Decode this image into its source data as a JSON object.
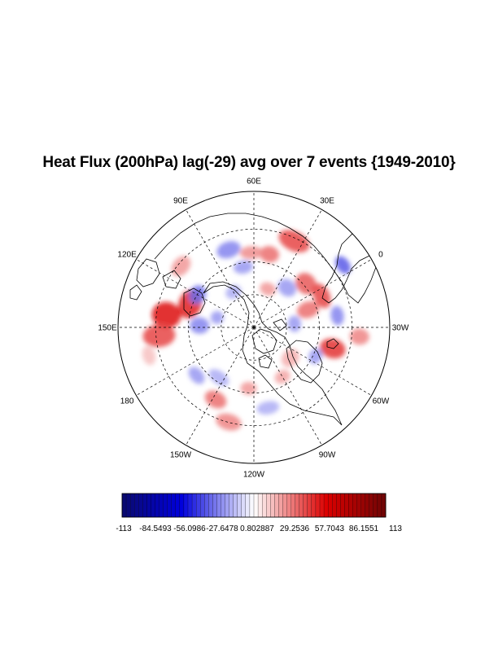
{
  "chart_data": {
    "type": "heatmap",
    "title": "Heat Flux (200hPa) lag(-29) avg over 7 events {1949-2010}",
    "projection": "north-polar-stereographic",
    "longitude_labels": [
      "60E",
      "30E",
      "0",
      "30W",
      "60W",
      "90W",
      "120W",
      "150W",
      "180",
      "150E",
      "120E",
      "90E"
    ],
    "longitude_angles_deg": [
      90,
      60,
      30,
      0,
      -30,
      -60,
      -90,
      -120,
      -150,
      180,
      150,
      120
    ],
    "grid": true,
    "latitude_circles": 3,
    "colorbar": {
      "min": -113,
      "max": 113,
      "tick_labels": [
        "-113",
        "-84.5493",
        "-56.0986",
        "-27.6478",
        "0.802887",
        "29.2536",
        "57.7043",
        "86.1551",
        "113"
      ],
      "colors": {
        "min": "#0a0a6e",
        "mid": "#ffffff",
        "max": "#6e0505"
      },
      "n_levels": 64
    },
    "anomalies": [
      {
        "angle": 65,
        "r": 0.7,
        "value": 45,
        "sx": 20,
        "sy": 12
      },
      {
        "angle": 78,
        "r": 0.55,
        "value": 35,
        "sx": 12,
        "sy": 10
      },
      {
        "angle": 92,
        "r": 0.55,
        "value": 28,
        "sx": 14,
        "sy": 8
      },
      {
        "angle": 108,
        "r": 0.6,
        "value": -30,
        "sx": 15,
        "sy": 10
      },
      {
        "angle": 100,
        "r": 0.45,
        "value": -25,
        "sx": 12,
        "sy": 8
      },
      {
        "angle": 40,
        "r": 0.5,
        "value": 40,
        "sx": 14,
        "sy": 12
      },
      {
        "angle": 25,
        "r": 0.55,
        "value": 45,
        "sx": 16,
        "sy": 10
      },
      {
        "angle": 18,
        "r": 0.42,
        "value": 35,
        "sx": 10,
        "sy": 14
      },
      {
        "angle": 50,
        "r": 0.38,
        "value": -25,
        "sx": 12,
        "sy": 10
      },
      {
        "angle": 35,
        "r": 0.8,
        "value": -40,
        "sx": 12,
        "sy": 8
      },
      {
        "angle": 8,
        "r": 0.62,
        "value": -30,
        "sx": 12,
        "sy": 8
      },
      {
        "angle": 160,
        "r": 0.5,
        "value": 55,
        "sx": 18,
        "sy": 14
      },
      {
        "angle": 172,
        "r": 0.65,
        "value": 60,
        "sx": 16,
        "sy": 18
      },
      {
        "angle": 185,
        "r": 0.7,
        "value": 45,
        "sx": 14,
        "sy": 20
      },
      {
        "angle": 150,
        "r": 0.48,
        "value": -35,
        "sx": 12,
        "sy": 10
      },
      {
        "angle": 178,
        "r": 0.4,
        "value": -30,
        "sx": 10,
        "sy": 12
      },
      {
        "angle": 165,
        "r": 0.28,
        "value": -25,
        "sx": 8,
        "sy": 8
      },
      {
        "angle": 140,
        "r": 0.7,
        "value": 25,
        "sx": 14,
        "sy": 10
      },
      {
        "angle": -125,
        "r": 0.45,
        "value": -20,
        "sx": 14,
        "sy": 8
      },
      {
        "angle": -118,
        "r": 0.6,
        "value": 35,
        "sx": 14,
        "sy": 10
      },
      {
        "angle": -105,
        "r": 0.72,
        "value": 30,
        "sx": 16,
        "sy": 10
      },
      {
        "angle": -140,
        "r": 0.55,
        "value": -25,
        "sx": 12,
        "sy": 8
      },
      {
        "angle": -80,
        "r": 0.6,
        "value": -20,
        "sx": 14,
        "sy": 8
      },
      {
        "angle": -95,
        "r": 0.45,
        "value": 25,
        "sx": 10,
        "sy": 8
      },
      {
        "angle": -15,
        "r": 0.6,
        "value": 50,
        "sx": 12,
        "sy": 16
      },
      {
        "angle": -25,
        "r": 0.5,
        "value": -25,
        "sx": 10,
        "sy": 8
      },
      {
        "angle": -5,
        "r": 0.78,
        "value": 30,
        "sx": 10,
        "sy": 12
      },
      {
        "angle": 5,
        "r": 0.3,
        "value": -25,
        "sx": 10,
        "sy": 8
      },
      {
        "angle": -40,
        "r": 0.35,
        "value": 20,
        "sx": 12,
        "sy": 10
      },
      {
        "angle": 120,
        "r": 0.3,
        "value": -20,
        "sx": 10,
        "sy": 8
      },
      {
        "angle": 70,
        "r": 0.3,
        "value": 25,
        "sx": 10,
        "sy": 8
      },
      {
        "angle": -165,
        "r": 0.8,
        "value": 15,
        "sx": 12,
        "sy": 8
      },
      {
        "angle": -60,
        "r": 0.42,
        "value": 22,
        "sx": 10,
        "sy": 8
      }
    ]
  }
}
